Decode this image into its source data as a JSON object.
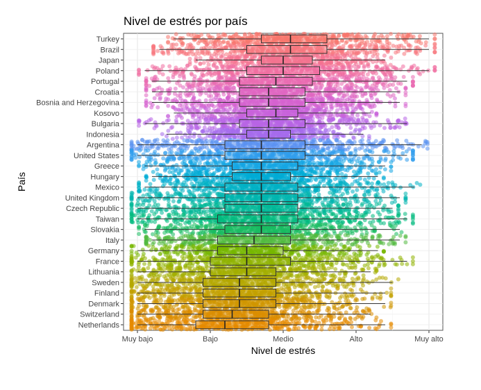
{
  "chart_data": {
    "type": "boxplot",
    "title": "Nivel de estrés por país",
    "xlabel": "Nivel de estrés",
    "ylabel": "País",
    "x_scale": {
      "min": 1,
      "max": 5
    },
    "x_ticks": [
      {
        "value": 1,
        "label": "Muy bajo"
      },
      {
        "value": 2,
        "label": "Bajo"
      },
      {
        "value": 3,
        "label": "Medio"
      },
      {
        "value": 4,
        "label": "Alto"
      },
      {
        "value": 5,
        "label": "Muy alto"
      }
    ],
    "grid": true,
    "jitter_points": true,
    "series": [
      {
        "name": "Turkey",
        "color": "#F8766D",
        "whisker_low": 1.5,
        "q1": 2.7,
        "median": 3.1,
        "q3": 3.6,
        "whisker_high": 5.0
      },
      {
        "name": "Brazil",
        "color": "#F7767E",
        "whisker_low": 1.3,
        "q1": 2.5,
        "median": 3.1,
        "q3": 3.6,
        "whisker_high": 5.0
      },
      {
        "name": "Japan",
        "color": "#F4738F",
        "whisker_low": 1.8,
        "q1": 2.7,
        "median": 3.0,
        "q3": 3.4,
        "whisker_high": 4.4
      },
      {
        "name": "Poland",
        "color": "#F06EA0",
        "whisker_low": 1.1,
        "q1": 2.5,
        "median": 3.0,
        "q3": 3.5,
        "whisker_high": 5.0
      },
      {
        "name": "Portugal",
        "color": "#E96AB1",
        "whisker_low": 1.2,
        "q1": 2.4,
        "median": 2.9,
        "q3": 3.4,
        "whisker_high": 4.7
      },
      {
        "name": "Croatia",
        "color": "#E066C1",
        "whisker_low": 1.2,
        "q1": 2.4,
        "median": 2.8,
        "q3": 3.3,
        "whisker_high": 4.6
      },
      {
        "name": "Bosnia and Herzegovina",
        "color": "#D563CF",
        "whisker_low": 1.2,
        "q1": 2.4,
        "median": 2.8,
        "q3": 3.3,
        "whisker_high": 4.6
      },
      {
        "name": "Kosovo",
        "color": "#C862DB",
        "whisker_low": 1.5,
        "q1": 2.5,
        "median": 2.9,
        "q3": 3.2,
        "whisker_high": 4.2
      },
      {
        "name": "Bulgaria",
        "color": "#B864E5",
        "whisker_low": 1.1,
        "q1": 2.4,
        "median": 2.8,
        "q3": 3.3,
        "whisker_high": 4.7
      },
      {
        "name": "Indonesia",
        "color": "#A56BEC",
        "whisker_low": 1.4,
        "q1": 2.5,
        "median": 2.8,
        "q3": 3.1,
        "whisker_high": 4.1
      },
      {
        "name": "Argentina",
        "color": "#5A91F1",
        "whisker_low": 1.0,
        "q1": 2.2,
        "median": 2.7,
        "q3": 3.3,
        "whisker_high": 4.9
      },
      {
        "name": "United States",
        "color": "#2F9CED",
        "whisker_low": 1.0,
        "q1": 2.2,
        "median": 2.7,
        "q3": 3.3,
        "whisker_high": 4.7
      },
      {
        "name": "Greece",
        "color": "#14A5E3",
        "whisker_low": 1.1,
        "q1": 2.3,
        "median": 2.7,
        "q3": 3.2,
        "whisker_high": 4.4
      },
      {
        "name": "Hungary",
        "color": "#00ACD5",
        "whisker_low": 1.2,
        "q1": 2.3,
        "median": 2.7,
        "q3": 3.1,
        "whisker_high": 4.3
      },
      {
        "name": "Mexico",
        "color": "#00B1C4",
        "whisker_low": 1.1,
        "q1": 2.2,
        "median": 2.7,
        "q3": 3.2,
        "whisker_high": 4.8
      },
      {
        "name": "United Kingdom",
        "color": "#00B5AF",
        "whisker_low": 1.0,
        "q1": 2.2,
        "median": 2.7,
        "q3": 3.2,
        "whisker_high": 4.6
      },
      {
        "name": "Czech Republic",
        "color": "#00B898",
        "whisker_low": 1.0,
        "q1": 2.2,
        "median": 2.7,
        "q3": 3.2,
        "whisker_high": 4.5
      },
      {
        "name": "Taiwan",
        "color": "#00BA7E",
        "whisker_low": 1.0,
        "q1": 2.1,
        "median": 2.7,
        "q3": 3.2,
        "whisker_high": 4.7
      },
      {
        "name": "Slovakia",
        "color": "#18BB61",
        "whisker_low": 1.1,
        "q1": 2.2,
        "median": 2.7,
        "q3": 3.1,
        "whisker_high": 4.6
      },
      {
        "name": "Italy",
        "color": "#52BA3F",
        "whisker_low": 1.2,
        "q1": 2.1,
        "median": 2.6,
        "q3": 3.1,
        "whisker_high": 4.6
      },
      {
        "name": "Germany",
        "color": "#76B700",
        "whisker_low": 1.0,
        "q1": 2.1,
        "median": 2.5,
        "q3": 3.0,
        "whisker_high": 4.3
      },
      {
        "name": "France",
        "color": "#8FB300",
        "whisker_low": 1.0,
        "q1": 2.0,
        "median": 2.5,
        "q3": 3.1,
        "whisker_high": 4.7
      },
      {
        "name": "Lithuania",
        "color": "#A3AE00",
        "whisker_low": 1.0,
        "q1": 2.0,
        "median": 2.5,
        "q3": 2.9,
        "whisker_high": 4.2
      },
      {
        "name": "Sweden",
        "color": "#B4A700",
        "whisker_low": 1.0,
        "q1": 1.9,
        "median": 2.4,
        "q3": 2.9,
        "whisker_high": 4.5
      },
      {
        "name": "Finland",
        "color": "#C3A000",
        "whisker_low": 1.0,
        "q1": 1.9,
        "median": 2.4,
        "q3": 2.9,
        "whisker_high": 4.4
      },
      {
        "name": "Denmark",
        "color": "#D09600",
        "whisker_low": 1.0,
        "q1": 1.9,
        "median": 2.4,
        "q3": 2.9,
        "whisker_high": 4.4
      },
      {
        "name": "Switzerland",
        "color": "#DB8D00",
        "whisker_low": 1.0,
        "q1": 1.9,
        "median": 2.3,
        "q3": 2.8,
        "whisker_high": 4.2
      },
      {
        "name": "Netherlands",
        "color": "#E58A00",
        "whisker_low": 1.0,
        "q1": 1.8,
        "median": 2.2,
        "q3": 2.8,
        "whisker_high": 4.4
      }
    ]
  }
}
